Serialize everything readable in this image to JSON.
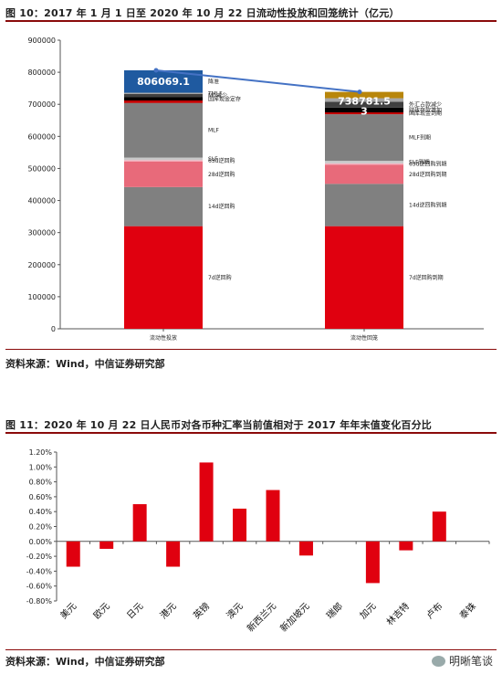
{
  "fig1": {
    "title": "图 10：2017 年 1 月 1 日至 2020 年 10 月 22 日流动性投放和回笼统计（亿元）",
    "source": "资料来源：Wind，中信证券研究部"
  },
  "fig2": {
    "title": "图 11：2020 年 10 月 22 日人民币对各币种汇率当前值相对于 2017 年年末值变化百分比",
    "source": "资料来源：Wind，中信证券研究部"
  },
  "watermark": "明晰笔谈",
  "chart_data": [
    {
      "type": "bar",
      "stacked": true,
      "ylim": [
        0,
        900000
      ],
      "yticks": [
        0,
        100000,
        200000,
        300000,
        400000,
        500000,
        600000,
        700000,
        800000,
        900000
      ],
      "categories": [
        "流动性投放",
        "流动性回笼"
      ],
      "totals": [
        "806069.1",
        "738781.53"
      ],
      "total_line_color": "#4472c4",
      "series": [
        {
          "values": [
            320000,
            320000
          ],
          "color": "#e0000f",
          "labels": [
            "7d逆回购",
            "7d逆回购到期"
          ]
        },
        {
          "values": [
            122000,
            132000
          ],
          "color": "#808080",
          "labels": [
            "14d逆回购",
            "14d逆回购到期"
          ]
        },
        {
          "values": [
            80000,
            60000
          ],
          "color": "#e86a7a",
          "labels": [
            "28d逆回购",
            "28d逆回购到期"
          ]
        },
        {
          "values": [
            4000,
            4000
          ],
          "color": "#f4b0bd",
          "labels": [
            "63d逆回购",
            "63d逆回购到期"
          ]
        },
        {
          "values": [
            8000,
            8000
          ],
          "color": "#c8c8c8",
          "labels": [
            "SLF",
            "SLF到期"
          ]
        },
        {
          "values": [
            170000,
            145000
          ],
          "color": "#7f7f7f",
          "labels": [
            "MLF",
            "MLF到期"
          ]
        },
        {
          "values": [
            8000,
            6000
          ],
          "color": "#c00000",
          "labels": [
            "",
            "国库现金到期"
          ]
        },
        {
          "values": [
            10000,
            15000
          ],
          "color": "#000000",
          "labels": [
            "国库现金定存",
            "财政存款增加"
          ]
        },
        {
          "values": [
            10000,
            18000
          ],
          "color": "#404040",
          "labels": [
            "M0减少",
            "外汇占款减少"
          ]
        },
        {
          "values": [
            4000,
            11000
          ],
          "color": "#a6a6a6",
          "labels": [
            "TMLF",
            ""
          ]
        },
        {
          "values": [
            70000,
            0
          ],
          "color": "#1f5aa0",
          "labels": [
            "降准",
            ""
          ]
        },
        {
          "values": [
            0,
            19800
          ],
          "color": "#b8860b",
          "labels": [
            "",
            ""
          ]
        }
      ]
    },
    {
      "type": "bar",
      "ylim": [
        -0.008,
        0.012
      ],
      "yticks": [
        "1.20%",
        "1.00%",
        "0.80%",
        "0.60%",
        "0.40%",
        "0.20%",
        "0.00%",
        "-0.20%",
        "-0.40%",
        "-0.60%",
        "-0.80%"
      ],
      "categories": [
        "美元",
        "欧元",
        "日元",
        "港元",
        "英镑",
        "澳元",
        "新西兰元",
        "新加坡元",
        "瑞郎",
        "加元",
        "林吉特",
        "卢布",
        "泰铢"
      ],
      "values": [
        -0.0034,
        -0.001,
        0.005,
        -0.0034,
        0.0106,
        0.0044,
        0.0069,
        -0.0019,
        0,
        -0.0056,
        -0.0012,
        0.004,
        0
      ],
      "color": "#e0000f"
    }
  ]
}
